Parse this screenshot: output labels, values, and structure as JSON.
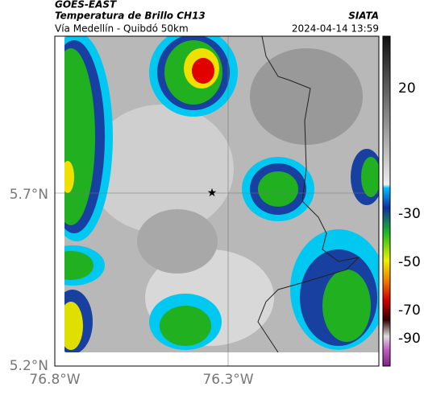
{
  "header": {
    "source": "GOES-EAST",
    "title": "Temperatura de Brillo CH13",
    "org": "SIATA",
    "subtitle": "Vía Medellín - Quibdó 50km",
    "timestamp": "2024-04-14 13:59"
  },
  "axes": {
    "y_labels": [
      "5.7°N",
      "5.2°N"
    ],
    "x_labels": [
      "76.8°W",
      "76.3°W"
    ]
  },
  "colorbar": {
    "ticks": [
      "20",
      "-30",
      "-50",
      "-70",
      "-90"
    ]
  }
}
